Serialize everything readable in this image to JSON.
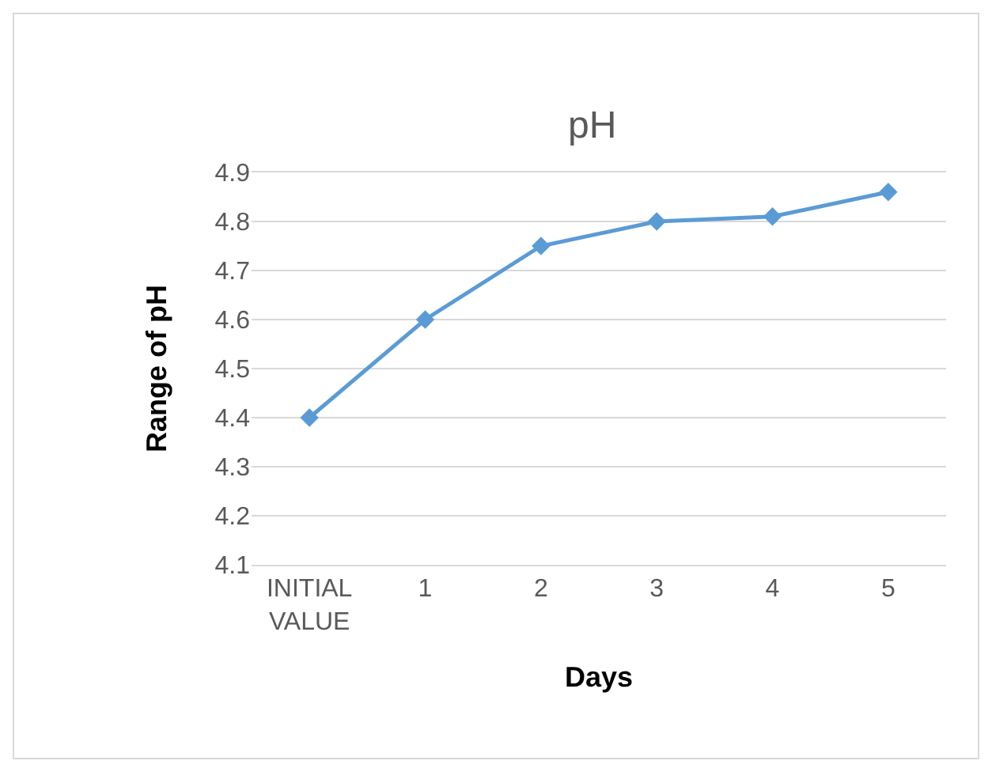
{
  "chart_data": {
    "type": "line",
    "title": "pH",
    "xlabel": "Days",
    "ylabel": "Range of pH",
    "categories": [
      "INITIAL VALUE",
      "1",
      "2",
      "3",
      "4",
      "5"
    ],
    "series": [
      {
        "color": "#5b9bd5",
        "values": [
          4.4,
          4.6,
          4.75,
          4.8,
          4.81,
          4.86
        ]
      }
    ],
    "ylim": [
      4.1,
      4.9
    ],
    "yticks": [
      4.1,
      4.2,
      4.3,
      4.4,
      4.5,
      4.6,
      4.7,
      4.8,
      4.9
    ],
    "grid": "y",
    "marker": "diamond",
    "line_style": "solid"
  }
}
